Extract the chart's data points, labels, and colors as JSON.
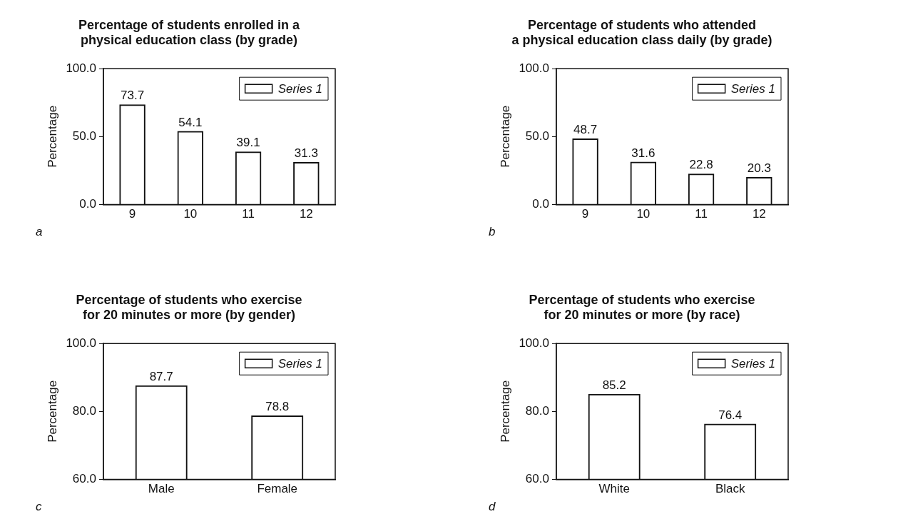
{
  "chart_data": [
    {
      "type": "bar",
      "title": "Percentage of students enrolled in a\nphysical education class (by grade)",
      "ylabel": "Percentage",
      "categories": [
        "9",
        "10",
        "11",
        "12"
      ],
      "series": [
        {
          "name": "Series 1",
          "color": "#111111",
          "values": [
            73.7,
            54.1,
            39.1,
            31.3
          ]
        }
      ],
      "ylim": [
        0,
        100
      ],
      "yticks": [
        {
          "value": 0,
          "label": "0.0"
        },
        {
          "value": 50,
          "label": "50.0"
        },
        {
          "value": 100,
          "label": "100.0"
        }
      ],
      "grid": false,
      "legend": "top right",
      "data_labels": true,
      "annotations": [
        "a"
      ]
    },
    {
      "type": "bar",
      "title": "Percentage of students who attended\na physical education class daily (by grade)",
      "ylabel": "Percentage",
      "categories": [
        "9",
        "10",
        "11",
        "12"
      ],
      "series": [
        {
          "name": "Series 1",
          "color": "#111111",
          "values": [
            48.7,
            31.6,
            22.8,
            20.3
          ]
        }
      ],
      "ylim": [
        0,
        100
      ],
      "yticks": [
        {
          "value": 0,
          "label": "0.0"
        },
        {
          "value": 50,
          "label": "50.0"
        },
        {
          "value": 100,
          "label": "100.0"
        }
      ],
      "grid": false,
      "legend": "top right",
      "data_labels": true,
      "annotations": [
        "b"
      ]
    },
    {
      "type": "bar",
      "title": "Percentage of students who exercise\nfor 20 minutes or more (by gender)",
      "ylabel": "Percentage",
      "categories": [
        "Male",
        "Female"
      ],
      "series": [
        {
          "name": "Series 1",
          "color": "#111111",
          "values": [
            87.7,
            78.8
          ]
        }
      ],
      "ylim": [
        60,
        100
      ],
      "yticks": [
        {
          "value": 60,
          "label": "60.0"
        },
        {
          "value": 80,
          "label": "80.0"
        },
        {
          "value": 100,
          "label": "100.0"
        }
      ],
      "grid": false,
      "legend": "top right",
      "data_labels": true,
      "annotations": [
        "c"
      ]
    },
    {
      "type": "bar",
      "title": "Percentage of students who exercise\nfor 20 minutes or more (by race)",
      "ylabel": "Percentage",
      "categories": [
        "White",
        "Black"
      ],
      "series": [
        {
          "name": "Series 1",
          "color": "#111111",
          "values": [
            85.2,
            76.4
          ]
        }
      ],
      "ylim": [
        60,
        100
      ],
      "yticks": [
        {
          "value": 60,
          "label": "60.0"
        },
        {
          "value": 80,
          "label": "80.0"
        },
        {
          "value": 100,
          "label": "100.0"
        }
      ],
      "grid": false,
      "legend": "top right",
      "data_labels": true,
      "annotations": [
        "d"
      ]
    }
  ]
}
